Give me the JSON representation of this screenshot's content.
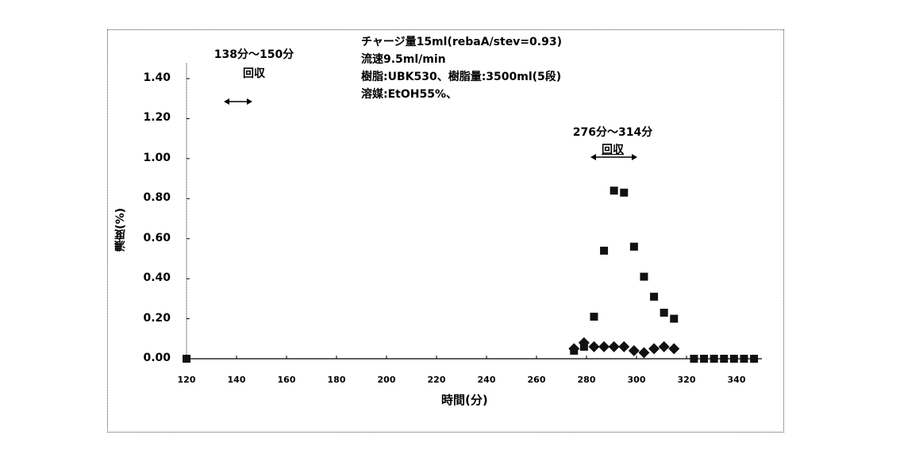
{
  "chart_data": {
    "type": "scatter",
    "title": "",
    "xlabel": "時間(分)",
    "ylabel": "濃度(%)",
    "xlim": [
      120,
      350
    ],
    "ylim": [
      0,
      1.5
    ],
    "xticks": [
      120,
      140,
      160,
      180,
      200,
      220,
      240,
      260,
      280,
      300,
      320,
      340
    ],
    "yticks": [
      "0.00",
      "0.20",
      "0.40",
      "0.60",
      "0.80",
      "1.00",
      "1.20",
      "1.40"
    ],
    "grid": false,
    "legend": null,
    "series": [
      {
        "name": "square",
        "marker": "square",
        "x": [
          120,
          275,
          279,
          283,
          287,
          291,
          295,
          299,
          303,
          307,
          311,
          315,
          323,
          327,
          331,
          335,
          339,
          343,
          347
        ],
        "y": [
          0.0,
          0.04,
          0.06,
          0.21,
          0.54,
          0.84,
          0.83,
          0.56,
          0.41,
          0.31,
          0.23,
          0.2,
          0.0,
          0.0,
          0.0,
          0.0,
          0.0,
          0.0,
          0.0
        ]
      },
      {
        "name": "diamond",
        "marker": "diamond",
        "x": [
          275,
          279,
          283,
          287,
          291,
          295,
          299,
          303,
          307,
          311,
          315
        ],
        "y": [
          0.05,
          0.08,
          0.06,
          0.06,
          0.06,
          0.06,
          0.04,
          0.03,
          0.05,
          0.06,
          0.05
        ]
      }
    ],
    "annotations": [
      {
        "text": "138分～150分",
        "sub": "回収",
        "range": [
          138,
          150
        ]
      },
      {
        "text": "276分～314分",
        "sub": "回収",
        "range": [
          276,
          314
        ]
      }
    ],
    "notes": [
      "チャージ量15ml(rebaA/stev=0.93)",
      "流速9.5ml/min",
      "樹脂:UBK530、樹脂量:3500ml(5段)",
      "溶媒:EtOH55%、"
    ]
  }
}
